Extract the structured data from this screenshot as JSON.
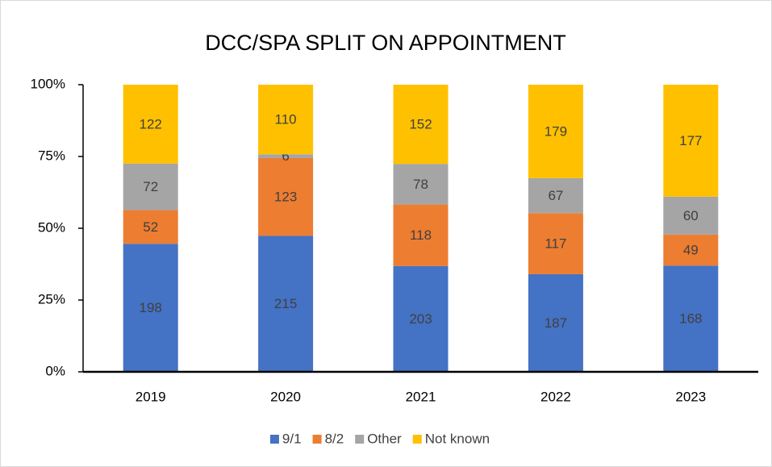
{
  "chart_data": {
    "type": "bar",
    "stacked": "percent",
    "title": "DCC/SPA SPLIT ON APPOINTMENT",
    "categories": [
      "2019",
      "2020",
      "2021",
      "2022",
      "2023"
    ],
    "series": [
      {
        "name": "9/1",
        "color": "#4472c4",
        "values": [
          198,
          215,
          203,
          187,
          168
        ]
      },
      {
        "name": "8/2",
        "color": "#ed7d31",
        "values": [
          52,
          123,
          118,
          117,
          49
        ]
      },
      {
        "name": "Other",
        "color": "#a5a5a5",
        "values": [
          72,
          6,
          78,
          67,
          60
        ]
      },
      {
        "name": "Not known",
        "color": "#ffc000",
        "values": [
          122,
          110,
          152,
          179,
          177
        ]
      }
    ],
    "ylim": [
      0,
      100
    ],
    "yticks": [
      {
        "value": 0,
        "label": "0%"
      },
      {
        "value": 25,
        "label": "25%"
      },
      {
        "value": 50,
        "label": "50%"
      },
      {
        "value": 75,
        "label": "75%"
      },
      {
        "value": 100,
        "label": "100%"
      }
    ],
    "legend": "bottom"
  }
}
